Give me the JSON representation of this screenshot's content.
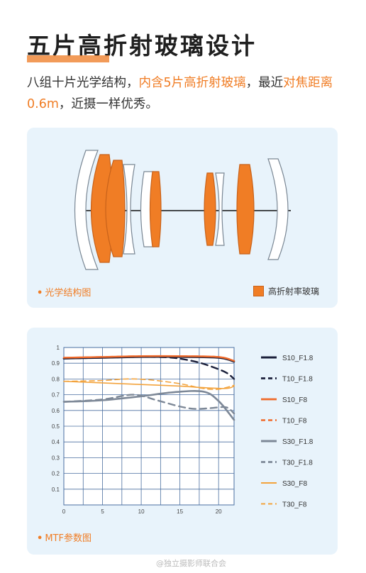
{
  "header": {
    "title": "五片高折射玻璃设计"
  },
  "description": {
    "part1": "八组十片光学结构，",
    "highlight1": "内含5片高折射玻璃",
    "part2": "，最近",
    "highlight2": "对焦距离0.6m",
    "part3": "，近摄一样优秀。"
  },
  "optics_card": {
    "caption": "光学结构图",
    "legend_label": "高折射率玻璃",
    "legend_color": "#f07d25"
  },
  "mtf_card": {
    "caption": "MTF参数图"
  },
  "watermark": "@独立摄影师联合会",
  "chart_data": {
    "type": "line",
    "title": "",
    "xlabel": "",
    "ylabel": "",
    "xlim": [
      0,
      22
    ],
    "ylim": [
      0,
      1
    ],
    "x_ticks": [
      0,
      5,
      10,
      15,
      20
    ],
    "y_ticks": [
      0.1,
      0.2,
      0.3,
      0.4,
      0.5,
      0.6,
      0.7,
      0.8,
      0.9,
      1
    ],
    "grid": true,
    "legend_position": "right",
    "series": [
      {
        "name": "S10_F1.8",
        "color": "#1a1f3a",
        "dash": false,
        "width": 2.6,
        "points": [
          [
            0,
            0.93
          ],
          [
            5,
            0.935
          ],
          [
            10,
            0.94
          ],
          [
            15,
            0.94
          ],
          [
            20,
            0.935
          ],
          [
            22,
            0.91
          ]
        ]
      },
      {
        "name": "T10_F1.8",
        "color": "#1a1f3a",
        "dash": true,
        "width": 2.4,
        "points": [
          [
            0,
            0.93
          ],
          [
            5,
            0.935
          ],
          [
            10,
            0.94
          ],
          [
            14,
            0.935
          ],
          [
            17,
            0.91
          ],
          [
            19,
            0.88
          ],
          [
            21,
            0.84
          ],
          [
            22,
            0.8
          ]
        ]
      },
      {
        "name": "S10_F8",
        "color": "#f06a2a",
        "dash": false,
        "width": 2.4,
        "points": [
          [
            0,
            0.935
          ],
          [
            5,
            0.94
          ],
          [
            10,
            0.945
          ],
          [
            15,
            0.945
          ],
          [
            20,
            0.94
          ],
          [
            22,
            0.915
          ]
        ]
      },
      {
        "name": "T10_F8",
        "color": "#f06a2a",
        "dash": true,
        "width": 2.2,
        "points": [
          [
            0,
            0.935
          ],
          [
            5,
            0.94
          ],
          [
            10,
            0.945
          ],
          [
            15,
            0.945
          ],
          [
            20,
            0.94
          ],
          [
            22,
            0.915
          ]
        ]
      },
      {
        "name": "S30_F1.8",
        "color": "#7d8897",
        "dash": false,
        "width": 2.6,
        "points": [
          [
            0,
            0.655
          ],
          [
            5,
            0.665
          ],
          [
            10,
            0.69
          ],
          [
            14,
            0.715
          ],
          [
            18,
            0.72
          ],
          [
            20,
            0.66
          ],
          [
            22,
            0.54
          ]
        ]
      },
      {
        "name": "T30_F1.8",
        "color": "#7d8897",
        "dash": true,
        "width": 2.4,
        "points": [
          [
            0,
            0.655
          ],
          [
            5,
            0.67
          ],
          [
            9,
            0.7
          ],
          [
            12,
            0.665
          ],
          [
            15,
            0.625
          ],
          [
            17,
            0.61
          ],
          [
            19,
            0.615
          ],
          [
            21,
            0.62
          ],
          [
            22,
            0.58
          ]
        ]
      },
      {
        "name": "S30_F8",
        "color": "#f3a33c",
        "dash": false,
        "width": 1.6,
        "points": [
          [
            0,
            0.785
          ],
          [
            5,
            0.775
          ],
          [
            10,
            0.765
          ],
          [
            15,
            0.755
          ],
          [
            18,
            0.745
          ],
          [
            21,
            0.74
          ],
          [
            22,
            0.755
          ]
        ]
      },
      {
        "name": "T30_F8",
        "color": "#f3a33c",
        "dash": true,
        "width": 1.6,
        "points": [
          [
            0,
            0.785
          ],
          [
            5,
            0.79
          ],
          [
            8,
            0.8
          ],
          [
            11,
            0.795
          ],
          [
            15,
            0.77
          ],
          [
            18,
            0.74
          ],
          [
            20,
            0.735
          ],
          [
            22,
            0.76
          ]
        ]
      }
    ]
  }
}
